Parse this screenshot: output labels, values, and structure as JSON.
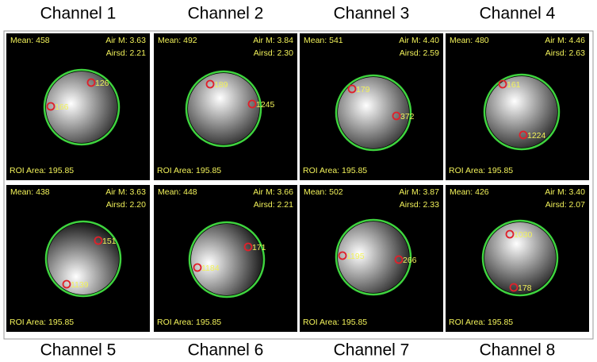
{
  "panels": [
    {
      "channel": "Channel 1",
      "mean": "Mean: 458",
      "air_m": "Air M: 3.63",
      "airsd": "Airsd: 2.21",
      "roi_area": "ROI Area: 195.85",
      "markers": [
        "126",
        "166"
      ]
    },
    {
      "channel": "Channel 2",
      "mean": "Mean: 492",
      "air_m": "Air M: 3.84",
      "airsd": "Airsd: 2.30",
      "roi_area": "ROI Area: 195.85",
      "markers": [
        "189",
        "1245"
      ]
    },
    {
      "channel": "Channel 3",
      "mean": "Mean: 541",
      "air_m": "Air M: 4.40",
      "airsd": "Airsd: 2.59",
      "roi_area": "ROI Area: 195.85",
      "markers": [
        "179",
        "372"
      ]
    },
    {
      "channel": "Channel 4",
      "mean": "Mean: 480",
      "air_m": "Air M: 4.46",
      "airsd": "Airsd: 2.63",
      "roi_area": "ROI Area: 195.85",
      "markers": [
        "161",
        "1224"
      ]
    },
    {
      "channel": "Channel 5",
      "mean": "Mean: 438",
      "air_m": "Air M: 3.63",
      "airsd": "Airsd: 2.20",
      "roi_area": "ROI Area: 195.85",
      "markers": [
        "151",
        "1139"
      ]
    },
    {
      "channel": "Channel 6",
      "mean": "Mean: 448",
      "air_m": "Air M: 3.66",
      "airsd": "Airsd: 2.21",
      "roi_area": "ROI Area: 195.85",
      "markers": [
        "171",
        "1184"
      ]
    },
    {
      "channel": "Channel 7",
      "mean": "Mean: 502",
      "air_m": "Air M: 3.87",
      "airsd": "Airsd: 2.33",
      "roi_area": "ROI Area: 195.85",
      "markers": [
        "1195",
        "266"
      ]
    },
    {
      "channel": "Channel 8",
      "mean": "Mean: 426",
      "air_m": "Air M: 3.40",
      "airsd": "Airsd: 2.07",
      "roi_area": "ROI Area: 195.85",
      "markers": [
        "1030",
        "178"
      ]
    }
  ]
}
